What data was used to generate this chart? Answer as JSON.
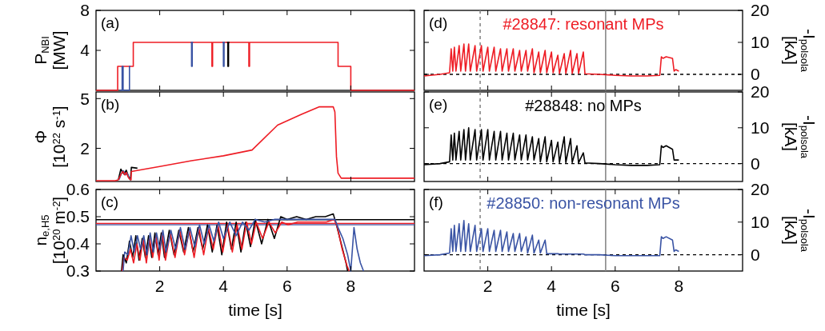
{
  "chart_data": [
    {
      "type": "line",
      "xlim": [
        0,
        10
      ],
      "xticks": [
        2,
        4,
        6,
        8
      ],
      "ylim": [
        0,
        8
      ],
      "yticks": [
        4,
        8
      ],
      "ylabel": "P$_{NBI}$ [MW]",
      "tick_labels": "y",
      "annotations": [
        "(a)"
      ],
      "series": [
        {
          "color": "#ee1c24",
          "x": [
            0,
            0.68,
            0.68,
            1.17,
            1.17,
            3.64,
            3.64,
            3.66,
            3.66,
            4.8,
            4.8,
            4.82,
            4.82,
            7.6,
            7.6,
            8.0,
            8.0,
            10
          ],
          "values": [
            0,
            0,
            2.4,
            2.4,
            4.8,
            4.8,
            2.4,
            2.4,
            4.8,
            4.8,
            2.4,
            2.4,
            4.8,
            4.8,
            2.4,
            2.4,
            0,
            0
          ]
        },
        {
          "color": "#3953a4",
          "x": [
            0.75,
            0.82,
            0.82,
            0.85,
            0.85,
            1.05,
            1.05,
            1.08,
            1.5,
            2.97,
            3.0,
            3.0,
            3.02,
            3.02,
            3.05,
            3.5,
            3.97,
            4.0,
            4.0,
            4.02,
            4.02,
            4.05
          ],
          "values": [
            0,
            0,
            2.4,
            2.4,
            0,
            0,
            2.4,
            2.4,
            null,
            4.8,
            4.8,
            2.4,
            2.4,
            4.8,
            4.8,
            null,
            4.8,
            4.8,
            2.4,
            2.4,
            4.8,
            4.8
          ]
        },
        {
          "color": "#000000",
          "x": [
            4.11,
            4.14,
            4.14,
            4.16,
            4.16,
            4.19
          ],
          "values": [
            4.8,
            4.8,
            2.4,
            2.4,
            4.8,
            4.8
          ]
        }
      ]
    },
    {
      "type": "line",
      "xlim": [
        0,
        10
      ],
      "xticks": [
        2,
        4,
        6,
        8
      ],
      "ylim": [
        0,
        5.4
      ],
      "yticks": [
        2,
        5
      ],
      "ylabel": "Φ [10$^{22}$ s$^{-1}$]",
      "tick_labels": "y",
      "annotations": [
        "(b)"
      ],
      "series": [
        {
          "color": "#000000",
          "x": [
            0.7,
            0.78,
            0.82,
            0.88,
            0.95,
            1.02,
            1.08,
            1.11,
            1.3
          ],
          "values": [
            0.1,
            0.75,
            0.6,
            0.45,
            0.68,
            0.3,
            0.1,
            0.85,
            0.8
          ]
        },
        {
          "color": "#3953a4",
          "x": [
            0.72,
            0.8,
            0.86,
            0.92,
            0.98,
            1.04,
            1.1
          ],
          "values": [
            0.1,
            0.5,
            0.65,
            0.4,
            0.5,
            0.2,
            0.1
          ]
        },
        {
          "color": "#ee1c24",
          "x": [
            0,
            0.6,
            0.7,
            0.8,
            0.85,
            0.9,
            0.95,
            1.0,
            1.05,
            1.1,
            1.11,
            2.0,
            3.0,
            4.0,
            4.9,
            5.7,
            6.45,
            7.0,
            7.45,
            7.5,
            7.55,
            7.6,
            7.7,
            8.0,
            9.0,
            10
          ],
          "values": [
            0.05,
            0.05,
            0.1,
            0.5,
            0.6,
            0.4,
            0.55,
            0.3,
            0.15,
            0.1,
            0.6,
            0.9,
            1.25,
            1.55,
            1.9,
            3.4,
            4.05,
            4.5,
            4.5,
            4.2,
            1.5,
            0.5,
            0.2,
            0.2,
            0.2,
            0.2
          ]
        }
      ]
    },
    {
      "type": "line",
      "xlim": [
        0,
        10
      ],
      "xticks": [
        2,
        4,
        6,
        8
      ],
      "ylim": [
        0.3,
        0.6
      ],
      "yticks": [
        0.3,
        0.4,
        0.5,
        0.6
      ],
      "xlabel": "time [s]",
      "ylabel": "n$_{e,H5}$ [10$^{20}$ m$^{-2}$]",
      "annotations": [
        "(c)"
      ],
      "ref_lines": [
        {
          "axis": "y",
          "value": 0.489,
          "color": "#000000"
        },
        {
          "axis": "y",
          "value": 0.475,
          "color": "#ee1c24"
        },
        {
          "axis": "y",
          "value": 0.47,
          "color": "#3953a4"
        }
      ],
      "series": [
        {
          "color": "#000000",
          "x": [
            0.8,
            0.85,
            0.95,
            1.05,
            1.15,
            1.25,
            1.35,
            1.45,
            1.55,
            1.65,
            1.75,
            1.85,
            1.95,
            2.05,
            2.15,
            2.3,
            2.45,
            2.6,
            2.75,
            2.9,
            3.05,
            3.2,
            3.35,
            3.5,
            3.65,
            3.8,
            3.95,
            4.1,
            4.25,
            4.4,
            4.55,
            4.7,
            4.85,
            5.0,
            5.2,
            5.4,
            5.6,
            5.8,
            6.0,
            6.3,
            6.6,
            6.9,
            7.2,
            7.45,
            7.55,
            7.7,
            7.85,
            7.9
          ],
          "values": [
            0.3,
            0.36,
            0.33,
            0.41,
            0.35,
            0.43,
            0.34,
            0.42,
            0.35,
            0.43,
            0.35,
            0.44,
            0.36,
            0.44,
            0.35,
            0.45,
            0.36,
            0.45,
            0.37,
            0.46,
            0.37,
            0.46,
            0.38,
            0.47,
            0.37,
            0.47,
            0.36,
            0.48,
            0.38,
            0.48,
            0.37,
            0.48,
            0.39,
            0.49,
            0.4,
            0.49,
            0.42,
            0.5,
            0.49,
            0.5,
            0.49,
            0.5,
            0.5,
            0.51,
            0.47,
            0.4,
            0.33,
            0.3
          ]
        },
        {
          "color": "#ee1c24",
          "x": [
            0.82,
            0.88,
            0.98,
            1.08,
            1.18,
            1.28,
            1.38,
            1.48,
            1.58,
            1.68,
            1.78,
            1.88,
            1.98,
            2.08,
            2.18,
            2.33,
            2.48,
            2.63,
            2.78,
            2.93,
            3.08,
            3.23,
            3.38,
            3.53,
            3.68,
            3.83,
            3.98,
            4.13,
            4.28,
            4.43,
            4.58,
            4.73,
            4.88,
            5.03,
            5.23,
            5.43,
            5.63,
            5.83,
            6.03,
            6.33,
            6.63,
            6.93,
            7.23,
            7.48,
            7.58,
            7.73,
            7.88,
            7.95
          ],
          "values": [
            0.3,
            0.35,
            0.34,
            0.38,
            0.33,
            0.4,
            0.34,
            0.42,
            0.33,
            0.42,
            0.35,
            0.43,
            0.34,
            0.44,
            0.34,
            0.44,
            0.35,
            0.45,
            0.36,
            0.45,
            0.35,
            0.46,
            0.36,
            0.46,
            0.38,
            0.47,
            0.37,
            0.47,
            0.37,
            0.47,
            0.38,
            0.48,
            0.4,
            0.48,
            0.42,
            0.48,
            0.44,
            0.48,
            0.47,
            0.48,
            0.48,
            0.48,
            0.48,
            0.49,
            0.46,
            0.38,
            0.32,
            0.3
          ]
        },
        {
          "color": "#3953a4",
          "x": [
            0.85,
            0.9,
            1.0,
            1.1,
            1.2,
            1.3,
            1.4,
            1.5,
            1.6,
            1.7,
            1.8,
            1.9,
            2.0,
            2.1,
            2.2,
            2.35,
            2.5,
            2.65,
            2.8,
            2.95,
            3.1,
            3.25,
            3.4,
            3.55,
            3.7,
            3.85,
            4.0,
            4.2,
            4.4,
            4.6,
            4.8,
            5.0,
            5.3,
            5.6,
            6.0,
            6.4,
            6.8,
            7.2,
            7.5,
            7.6,
            7.75,
            7.9,
            8.0,
            8.1,
            8.2,
            8.3,
            8.4
          ],
          "values": [
            0.3,
            0.37,
            0.36,
            0.43,
            0.37,
            0.43,
            0.38,
            0.43,
            0.36,
            0.44,
            0.37,
            0.44,
            0.38,
            0.45,
            0.37,
            0.45,
            0.38,
            0.46,
            0.38,
            0.46,
            0.39,
            0.47,
            0.4,
            0.47,
            0.41,
            0.48,
            0.42,
            0.48,
            0.43,
            0.48,
            0.45,
            0.49,
            0.48,
            0.49,
            0.49,
            0.49,
            0.49,
            0.49,
            0.49,
            0.46,
            0.42,
            0.36,
            0.3,
            0.46,
            0.38,
            0.33,
            0.3
          ]
        }
      ]
    },
    {
      "type": "line",
      "xlim": [
        0,
        10
      ],
      "xticks": [
        2,
        4,
        6,
        8
      ],
      "y2lim": [
        -5,
        20
      ],
      "y2ticks": [
        0,
        10,
        20
      ],
      "y2label": "-I$_{polsola}$ [kA]",
      "tick_labels": "y",
      "annotations": [
        "(d)"
      ],
      "ref_lines": [
        {
          "axis": "x",
          "value": 1.76,
          "color": "#888888",
          "line_style": "dashed"
        },
        {
          "axis": "x",
          "value": 5.7,
          "color": "#888888",
          "line_style": "solid"
        },
        {
          "axis": "y2",
          "value": 0,
          "color": "#000000",
          "line_style": "dashed"
        }
      ],
      "series": [
        {
          "name": "#28847: resonant MPs",
          "color": "#ee1c24",
          "axis": "y2",
          "x": [
            0,
            0.5,
            0.8,
            0.85,
            0.9,
            0.95,
            1.0,
            1.1,
            1.15,
            1.25,
            1.3,
            1.4,
            1.45,
            1.6,
            1.65,
            1.8,
            1.85,
            2.0,
            2.05,
            2.2,
            2.25,
            2.4,
            2.45,
            2.6,
            2.65,
            2.8,
            2.85,
            3.0,
            3.05,
            3.2,
            3.25,
            3.4,
            3.45,
            3.6,
            3.65,
            3.8,
            3.85,
            4.0,
            4.05,
            4.2,
            4.25,
            4.4,
            4.45,
            4.6,
            4.65,
            4.8,
            4.85,
            5.0,
            5.05,
            5.5,
            6.0,
            6.5,
            7.0,
            7.4,
            7.45,
            7.5,
            7.6,
            7.8,
            7.85,
            7.9,
            8.0
          ],
          "values": [
            -0.5,
            0,
            0.5,
            8,
            1,
            8.5,
            1,
            9,
            1,
            9.5,
            1,
            9.5,
            1,
            9,
            1,
            9,
            1,
            8.5,
            1,
            8.5,
            1,
            8,
            1,
            8,
            1,
            8,
            1,
            7.5,
            1,
            7.5,
            1,
            8,
            0.5,
            7,
            0.5,
            7.5,
            0.5,
            7,
            0.5,
            6,
            0.3,
            6.5,
            0.3,
            7.5,
            0.3,
            6.5,
            0.3,
            7,
            0.2,
            0,
            -0.3,
            -0.5,
            -0.5,
            -0.3,
            5.5,
            5,
            5.5,
            5,
            1,
            1.5,
            1
          ]
        }
      ]
    },
    {
      "type": "line",
      "xlim": [
        0,
        10
      ],
      "xticks": [
        2,
        4,
        6,
        8
      ],
      "y2lim": [
        -5,
        20
      ],
      "y2ticks": [
        0,
        10,
        20
      ],
      "y2label": "-I$_{polsola}$ [kA]",
      "tick_labels": "y",
      "annotations": [
        "(e)"
      ],
      "ref_lines": [
        {
          "axis": "x",
          "value": 1.76,
          "color": "#888888",
          "line_style": "dashed"
        },
        {
          "axis": "x",
          "value": 5.7,
          "color": "#888888",
          "line_style": "solid"
        },
        {
          "axis": "y2",
          "value": 0,
          "color": "#000000",
          "line_style": "dashed"
        }
      ],
      "series": [
        {
          "name": "#28848: no MPs",
          "color": "#000000",
          "axis": "y2",
          "x": [
            0,
            0.5,
            0.8,
            0.85,
            0.9,
            0.95,
            1.0,
            1.1,
            1.15,
            1.25,
            1.3,
            1.4,
            1.45,
            1.6,
            1.65,
            1.8,
            1.85,
            2.0,
            2.05,
            2.2,
            2.25,
            2.4,
            2.45,
            2.6,
            2.65,
            2.8,
            2.85,
            3.0,
            3.05,
            3.2,
            3.25,
            3.4,
            3.45,
            3.6,
            3.65,
            3.8,
            3.85,
            4.0,
            4.05,
            4.2,
            4.25,
            4.4,
            4.45,
            4.6,
            4.65,
            4.8,
            4.85,
            5.0,
            5.05,
            5.5,
            6.0,
            6.5,
            7.0,
            7.4,
            7.45,
            7.5,
            7.6,
            7.8,
            7.85,
            7.9,
            8.0
          ],
          "values": [
            -0.3,
            0,
            0.5,
            8,
            1,
            8.5,
            1,
            9,
            1,
            9.5,
            1,
            10,
            1,
            9.5,
            1,
            9.5,
            1,
            9.5,
            1,
            9,
            1,
            9,
            1,
            8.5,
            1,
            8.5,
            1,
            8,
            1,
            8,
            1,
            7.5,
            1,
            7,
            0.5,
            7.5,
            0.5,
            6.5,
            0.5,
            6,
            0.3,
            7.5,
            0.3,
            7,
            0.3,
            5,
            0.2,
            3,
            0.2,
            0,
            -0.3,
            -0.5,
            -0.5,
            -0.3,
            5,
            4.5,
            5,
            4,
            1,
            1,
            1
          ]
        }
      ]
    },
    {
      "type": "line",
      "xlim": [
        0,
        10
      ],
      "xticks": [
        2,
        4,
        6,
        8
      ],
      "y2lim": [
        -5,
        20
      ],
      "y2ticks": [
        0,
        10,
        20
      ],
      "xlabel": "time [s]",
      "y2label": "-I$_{polsola}$ [kA]",
      "annotations": [
        "(f)"
      ],
      "ref_lines": [
        {
          "axis": "x",
          "value": 1.76,
          "color": "#888888",
          "line_style": "dashed"
        },
        {
          "axis": "x",
          "value": 5.7,
          "color": "#888888",
          "line_style": "solid"
        },
        {
          "axis": "y2",
          "value": 0,
          "color": "#000000",
          "line_style": "dashed"
        }
      ],
      "series": [
        {
          "name": "#28850: non-resonant MPs",
          "color": "#3953a4",
          "axis": "y2",
          "x": [
            0,
            0.5,
            0.8,
            0.85,
            0.9,
            0.95,
            1.0,
            1.1,
            1.15,
            1.25,
            1.3,
            1.4,
            1.45,
            1.6,
            1.65,
            1.8,
            1.85,
            2.0,
            2.05,
            2.2,
            2.25,
            2.4,
            2.45,
            2.6,
            2.65,
            2.8,
            2.85,
            3.0,
            3.05,
            3.2,
            3.25,
            3.4,
            3.45,
            3.6,
            3.65,
            3.8,
            3.85,
            4.0,
            4.05,
            4.2,
            4.25,
            4.4,
            4.45,
            4.6,
            4.65,
            4.8,
            4.85,
            5.0,
            5.05,
            5.5,
            6.0,
            6.5,
            7.0,
            7.4,
            7.45,
            7.5,
            7.6,
            7.8,
            7.85,
            7.9,
            8.0
          ],
          "values": [
            -0.3,
            0,
            0.5,
            8,
            1,
            9,
            1,
            9.5,
            1,
            10.5,
            1,
            9.5,
            1,
            9,
            1,
            8,
            1,
            8,
            1,
            7.5,
            1,
            7.5,
            1,
            7,
            1,
            6.5,
            1,
            6.5,
            1,
            5.5,
            0.5,
            6,
            0.5,
            4.5,
            0.5,
            4.5,
            0.3,
            0.3,
            0.3,
            0.3,
            0.2,
            0.2,
            0.2,
            0.2,
            0.2,
            0.2,
            0.2,
            0.2,
            0,
            0,
            -0.3,
            -0.3,
            -0.3,
            -0.3,
            5.5,
            5,
            5.5,
            4.5,
            1,
            1.5,
            1
          ]
        }
      ]
    }
  ]
}
